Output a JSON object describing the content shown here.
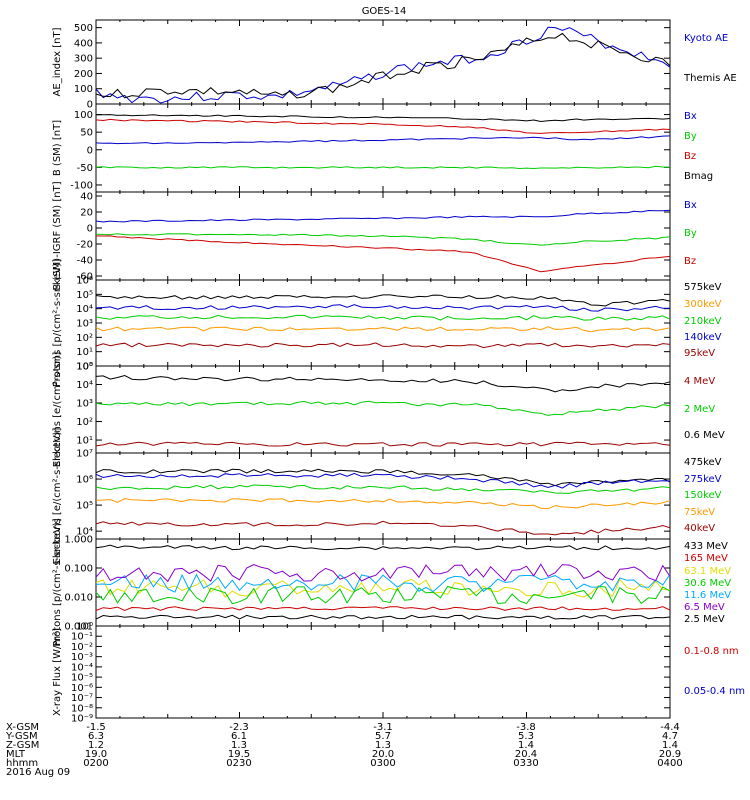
{
  "title": "GOES-14",
  "date_label": "2016 Aug 09",
  "colors": {
    "black": "#000000",
    "blue": "#0000cc",
    "red": "#cc0000",
    "green": "#00cc00",
    "orange": "#ff9900",
    "cyan": "#00aaff",
    "yellow": "#dddd00",
    "purple": "#8800cc",
    "darkred": "#990000"
  },
  "orbit_table": {
    "row_labels": [
      "X-GSM",
      "Y-GSM",
      "Z-GSM",
      "MLT",
      "hhmm"
    ],
    "columns": [
      [
        "-1.5",
        "6.3",
        "1.2",
        "19.0",
        "0200"
      ],
      [
        "-2.3",
        "6.1",
        "1.3",
        "19.5",
        "0230"
      ],
      [
        "-3.1",
        "5.7",
        "1.3",
        "20.0",
        "0300"
      ],
      [
        "-3.8",
        "5.3",
        "1.4",
        "20.4",
        "0330"
      ],
      [
        "-4.4",
        "4.7",
        "1.4",
        "20.9",
        "0400"
      ]
    ]
  },
  "chart_data": [
    {
      "type": "line",
      "ylabel": "AE_index [nT]",
      "ylim": [
        0,
        550
      ],
      "yticks": [
        "0",
        "100",
        "200",
        "300",
        "400",
        "500"
      ],
      "ytick_values": [
        0,
        100,
        200,
        300,
        400,
        500
      ],
      "x_hours": [
        2.0,
        2.1,
        2.25,
        2.5,
        2.62,
        2.85,
        3.05,
        3.35,
        3.5,
        3.6,
        3.85,
        4.0
      ],
      "series": [
        {
          "name": "Kyoto AE",
          "color": "#0000cc",
          "values": [
            80,
            40,
            35,
            60,
            45,
            120,
            230,
            310,
            420,
            500,
            350,
            270
          ]
        },
        {
          "name": "Themis AE",
          "color": "#000000",
          "values": [
            60,
            70,
            90,
            80,
            50,
            110,
            210,
            300,
            400,
            460,
            340,
            260
          ]
        }
      ]
    },
    {
      "type": "line",
      "ylabel": "B (SM) [nT]",
      "ylim": [
        -120,
        130
      ],
      "yticks": [
        "100",
        "50",
        "0",
        "-50",
        "-100"
      ],
      "ytick_values": [
        100,
        50,
        0,
        -50,
        -100
      ],
      "x_hours": [
        2.0,
        2.5,
        3.0,
        3.3,
        3.55,
        3.7,
        4.0
      ],
      "series": [
        {
          "name": "Bx",
          "color": "#0000cc",
          "values": [
            18,
            20,
            28,
            32,
            35,
            28,
            38
          ]
        },
        {
          "name": "By",
          "color": "#00cc00",
          "values": [
            -50,
            -50,
            -50,
            -50,
            -52,
            -51,
            -48
          ]
        },
        {
          "name": "Bz",
          "color": "#cc0000",
          "values": [
            85,
            80,
            72,
            65,
            45,
            50,
            58
          ]
        },
        {
          "name": "Bmag",
          "color": "#000000",
          "values": [
            100,
            96,
            92,
            88,
            82,
            86,
            88
          ]
        }
      ]
    },
    {
      "type": "line",
      "ylabel": "B (SM)-IGRF (SM) [nT]",
      "ylim": [
        -65,
        45
      ],
      "yticks": [
        "40",
        "20",
        "0",
        "-20",
        "-40",
        "-60"
      ],
      "ytick_values": [
        40,
        20,
        0,
        -20,
        -40,
        -60
      ],
      "x_hours": [
        2.0,
        2.5,
        3.0,
        3.3,
        3.55,
        3.7,
        4.0
      ],
      "series": [
        {
          "name": "Bx",
          "color": "#0000cc",
          "values": [
            8,
            10,
            12,
            14,
            14,
            18,
            22
          ]
        },
        {
          "name": "By",
          "color": "#00cc00",
          "values": [
            -8,
            -8,
            -10,
            -14,
            -22,
            -17,
            -12
          ]
        },
        {
          "name": "Bz",
          "color": "#cc0000",
          "values": [
            -10,
            -18,
            -25,
            -30,
            -54,
            -48,
            -35
          ]
        }
      ]
    },
    {
      "type": "line",
      "ylabel": "Protons [p/(cm²-s-sr-keV)]",
      "scale": "log",
      "ylim": [
        1,
        1000000
      ],
      "yticks": [
        "10⁰",
        "10¹",
        "10²",
        "10³",
        "10⁴",
        "10⁵",
        "10⁶"
      ],
      "ytick_values": [
        1,
        10,
        100,
        1000,
        10000,
        100000,
        1000000
      ],
      "x_hours": [
        2.0,
        2.5,
        3.0,
        3.3,
        3.6,
        3.75,
        4.0
      ],
      "series": [
        {
          "name": "575keV",
          "color": "#000000",
          "values": [
            60000,
            60000,
            70000,
            65000,
            55000,
            20000,
            35000
          ]
        },
        {
          "name": "300keV",
          "color": "#ff9900",
          "values": [
            400,
            380,
            420,
            350,
            450,
            300,
            400
          ]
        },
        {
          "name": "210keV",
          "color": "#00cc00",
          "values": [
            2500,
            2500,
            2500,
            2000,
            2500,
            2000,
            2500
          ]
        },
        {
          "name": "140keV",
          "color": "#0000cc",
          "values": [
            12000,
            12000,
            15000,
            12000,
            13000,
            8000,
            12000
          ]
        },
        {
          "name": "95keV",
          "color": "#990000",
          "values": [
            30,
            28,
            30,
            25,
            30,
            25,
            30
          ]
        }
      ]
    },
    {
      "type": "line",
      "ylabel": "Electrons [e/(cm²-s-sr)]",
      "scale": "log",
      "ylim": [
        2,
        100000
      ],
      "yticks": [
        "10¹",
        "10²",
        "10³",
        "10⁴",
        "10⁵"
      ],
      "ytick_values": [
        10,
        100,
        1000,
        10000,
        100000
      ],
      "x_hours": [
        2.0,
        2.5,
        3.0,
        3.3,
        3.6,
        3.75,
        4.0
      ],
      "series": [
        {
          "name": "4 MeV",
          "color": "#990000",
          "values": [
            6,
            6,
            6,
            6,
            6,
            6,
            6
          ]
        },
        {
          "name": "2 MeV",
          "color": "#00cc00",
          "values": [
            800,
            1000,
            1000,
            800,
            250,
            400,
            700
          ]
        },
        {
          "name": "0.6 MeV",
          "color": "#000000",
          "values": [
            25000,
            20000,
            18000,
            15000,
            5000,
            8000,
            12000
          ]
        }
      ]
    },
    {
      "type": "line",
      "ylabel": "Electrons [e/(cm²-s-sr-keV)]",
      "scale": "log",
      "ylim": [
        5000,
        10000000
      ],
      "yticks": [
        "10⁴",
        "10⁵",
        "10⁶",
        "10⁷"
      ],
      "ytick_values": [
        10000,
        100000,
        1000000,
        10000000
      ],
      "x_hours": [
        2.0,
        2.5,
        3.0,
        3.3,
        3.6,
        3.75,
        4.0
      ],
      "series": [
        {
          "name": "475keV",
          "color": "#000000",
          "values": [
            2000000,
            2000000,
            2000000,
            1500000,
            600000,
            800000,
            900000
          ]
        },
        {
          "name": "275keV",
          "color": "#0000cc",
          "values": [
            1300000,
            1400000,
            1400000,
            1000000,
            500000,
            700000,
            900000
          ]
        },
        {
          "name": "150keV",
          "color": "#00cc00",
          "values": [
            450000,
            500000,
            480000,
            400000,
            300000,
            350000,
            450000
          ]
        },
        {
          "name": "75keV",
          "color": "#ff9900",
          "values": [
            150000,
            150000,
            150000,
            120000,
            80000,
            100000,
            130000
          ]
        },
        {
          "name": "40keV",
          "color": "#990000",
          "values": [
            20000,
            18000,
            20000,
            15000,
            7000,
            10000,
            15000
          ]
        }
      ]
    },
    {
      "type": "line",
      "ylabel": "Protons [p/(cm²-s-sr-keV)]",
      "scale": "log",
      "ylim": [
        0.001,
        1
      ],
      "yticks": [
        "0.001",
        "0.010",
        "0.100",
        "1.000"
      ],
      "ytick_values": [
        0.001,
        0.01,
        0.1,
        1
      ],
      "x_hours": [
        2.0,
        2.5,
        3.0,
        3.5,
        4.0
      ],
      "series": [
        {
          "name": "433 MeV",
          "color": "#000000",
          "values": [
            0.55,
            0.5,
            0.5,
            0.5,
            0.5
          ]
        },
        {
          "name": "165 MeV",
          "color": "#cc0000",
          "values": [
            0.004,
            0.004,
            0.004,
            0.004,
            0.004
          ]
        },
        {
          "name": "63.1 MeV",
          "color": "#dddd00",
          "values": [
            0.02,
            0.02,
            0.02,
            0.02,
            0.02
          ]
        },
        {
          "name": "30.6 MeV",
          "color": "#00cc00",
          "values": [
            0.012,
            0.012,
            0.012,
            0.012,
            0.012
          ]
        },
        {
          "name": "11.6 MeV",
          "color": "#00aaff",
          "values": [
            0.03,
            0.03,
            0.03,
            0.03,
            0.03
          ]
        },
        {
          "name": "6.5 MeV",
          "color": "#8800cc",
          "values": [
            0.07,
            0.07,
            0.07,
            0.07,
            0.07
          ]
        },
        {
          "name": "2.5 MeV",
          "color": "#000000",
          "values": [
            0.002,
            0.002,
            0.002,
            0.002,
            0.002
          ]
        }
      ]
    },
    {
      "type": "line",
      "ylabel": "X-ray Flux [W/m²]",
      "scale": "log",
      "ylim": [
        1e-09,
        1
      ],
      "yticks": [
        "10⁻⁹",
        "10⁻⁸",
        "10⁻⁷",
        "10⁻⁶",
        "10⁻⁵",
        "10⁻⁴",
        "10⁻³",
        "10⁻²",
        "10⁻¹",
        "10⁰"
      ],
      "ytick_values": [
        1e-09,
        1e-08,
        1e-07,
        1e-06,
        1e-05,
        0.0001,
        0.001,
        0.01,
        0.1,
        1
      ],
      "x_hours": [],
      "series": [
        {
          "name": "0.1-0.8 nm",
          "color": "#cc0000",
          "values": []
        },
        {
          "name": "0.05-0.4 nm",
          "color": "#0000cc",
          "values": []
        }
      ]
    }
  ]
}
